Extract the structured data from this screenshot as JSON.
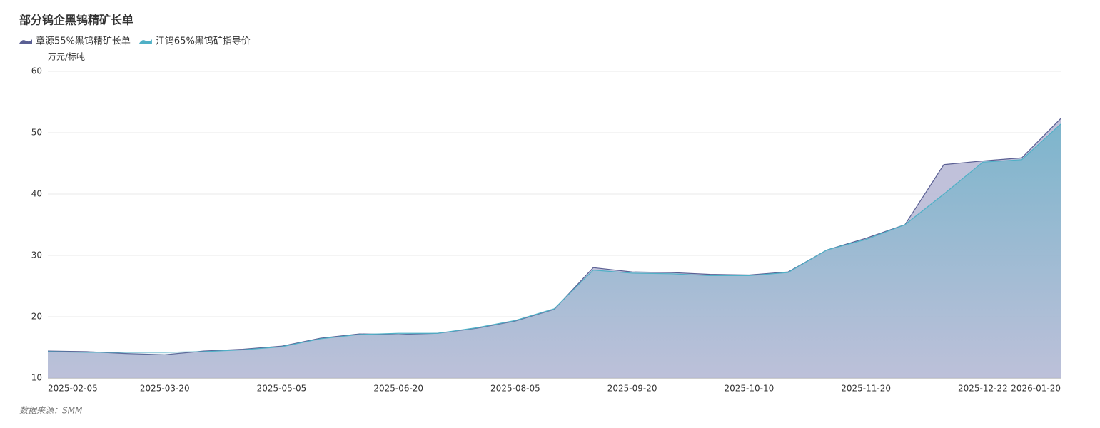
{
  "chart_data": {
    "type": "area",
    "title": "部分钨企黑钨精矿长单",
    "y_axis_label": "万元/标吨",
    "source": "数据来源：SMM",
    "categories": [
      "2025-02-05",
      null,
      null,
      "2025-03-20",
      null,
      null,
      "2025-05-05",
      null,
      null,
      "2025-06-20",
      null,
      null,
      "2025-08-05",
      null,
      null,
      "2025-09-20",
      null,
      null,
      "2025-10-10",
      null,
      null,
      "2025-11-20",
      null,
      null,
      "2025-12-22",
      null,
      "2026-01-20"
    ],
    "series": [
      {
        "name": "章源55%黑钨精矿长单",
        "color": "#5a5f93",
        "fill": "#b9bad6",
        "values": [
          14.4,
          14.3,
          14.0,
          13.8,
          14.4,
          14.7,
          15.2,
          16.5,
          17.2,
          17.1,
          17.3,
          18.1,
          19.3,
          21.2,
          28.0,
          27.3,
          27.2,
          26.9,
          26.8,
          27.3,
          30.9,
          32.8,
          35.0,
          44.8,
          45.4,
          45.9,
          52.3
        ]
      },
      {
        "name": "江钨65%黑钨矿指导价",
        "color": "#4fb0c6",
        "fill": "#7db5cc",
        "values": [
          14.3,
          14.2,
          14.2,
          14.2,
          14.3,
          14.6,
          15.1,
          16.4,
          17.1,
          17.3,
          17.3,
          18.2,
          19.4,
          21.3,
          27.6,
          27.1,
          27.0,
          26.7,
          26.7,
          27.2,
          30.9,
          32.6,
          35.0,
          40.0,
          45.2,
          45.6,
          51.4
        ]
      }
    ],
    "ylim": [
      10,
      60
    ],
    "yticks": [
      10,
      20,
      30,
      40,
      50,
      60
    ],
    "grid": true
  }
}
